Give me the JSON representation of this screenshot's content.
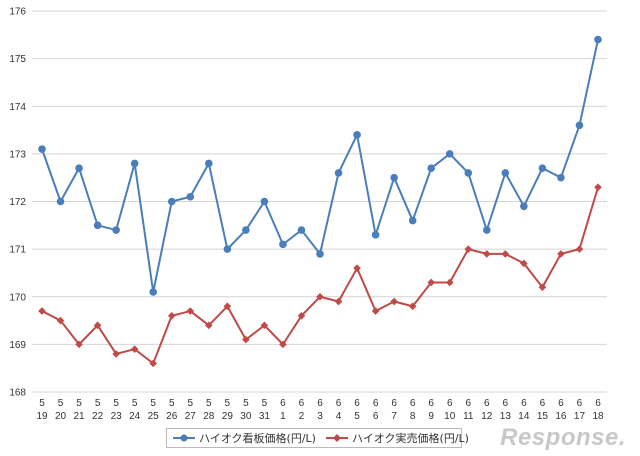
{
  "chart_data": {
    "type": "line",
    "title": "",
    "xlabel": "",
    "ylabel": "",
    "ylim": [
      168,
      176
    ],
    "yticks": [
      168,
      169,
      170,
      171,
      172,
      173,
      174,
      175,
      176
    ],
    "grid": true,
    "legend_position": "bottom",
    "categories": [
      {
        "month": "5",
        "day": "19"
      },
      {
        "month": "5",
        "day": "20"
      },
      {
        "month": "5",
        "day": "21"
      },
      {
        "month": "5",
        "day": "22"
      },
      {
        "month": "5",
        "day": "23"
      },
      {
        "month": "5",
        "day": "24"
      },
      {
        "month": "5",
        "day": "25"
      },
      {
        "month": "5",
        "day": "26"
      },
      {
        "month": "5",
        "day": "27"
      },
      {
        "month": "5",
        "day": "28"
      },
      {
        "month": "5",
        "day": "29"
      },
      {
        "month": "5",
        "day": "30"
      },
      {
        "month": "5",
        "day": "31"
      },
      {
        "month": "6",
        "day": "1"
      },
      {
        "month": "6",
        "day": "2"
      },
      {
        "month": "6",
        "day": "3"
      },
      {
        "month": "6",
        "day": "4"
      },
      {
        "month": "6",
        "day": "5"
      },
      {
        "month": "6",
        "day": "6"
      },
      {
        "month": "6",
        "day": "7"
      },
      {
        "month": "6",
        "day": "8"
      },
      {
        "month": "6",
        "day": "9"
      },
      {
        "month": "6",
        "day": "10"
      },
      {
        "month": "6",
        "day": "11"
      },
      {
        "month": "6",
        "day": "12"
      },
      {
        "month": "6",
        "day": "13"
      },
      {
        "month": "6",
        "day": "14"
      },
      {
        "month": "6",
        "day": "15"
      },
      {
        "month": "6",
        "day": "16"
      },
      {
        "month": "6",
        "day": "17"
      },
      {
        "month": "6",
        "day": "18"
      }
    ],
    "series": [
      {
        "name": "ハイオク看板価格(円/L)",
        "color": "#4a7ebb",
        "marker": "circle",
        "values": [
          173.1,
          172.0,
          172.7,
          171.5,
          171.4,
          172.8,
          170.1,
          172.0,
          172.1,
          172.8,
          171.0,
          171.4,
          172.0,
          171.1,
          171.4,
          170.9,
          172.6,
          173.4,
          171.3,
          172.5,
          171.6,
          172.7,
          173.0,
          172.6,
          171.4,
          172.6,
          171.9,
          172.7,
          172.5,
          173.6,
          175.4
        ]
      },
      {
        "name": "ハイオク実売価格(円/L)",
        "color": "#be4b48",
        "marker": "diamond",
        "values": [
          169.7,
          169.5,
          169.0,
          169.4,
          168.8,
          168.9,
          168.6,
          169.6,
          169.7,
          169.4,
          169.8,
          169.1,
          169.4,
          169.0,
          169.6,
          170.0,
          169.9,
          170.6,
          169.7,
          169.9,
          169.8,
          170.3,
          170.3,
          171.0,
          170.9,
          170.9,
          170.7,
          170.2,
          170.9,
          171.0,
          172.3
        ]
      }
    ]
  },
  "watermark": "Response."
}
